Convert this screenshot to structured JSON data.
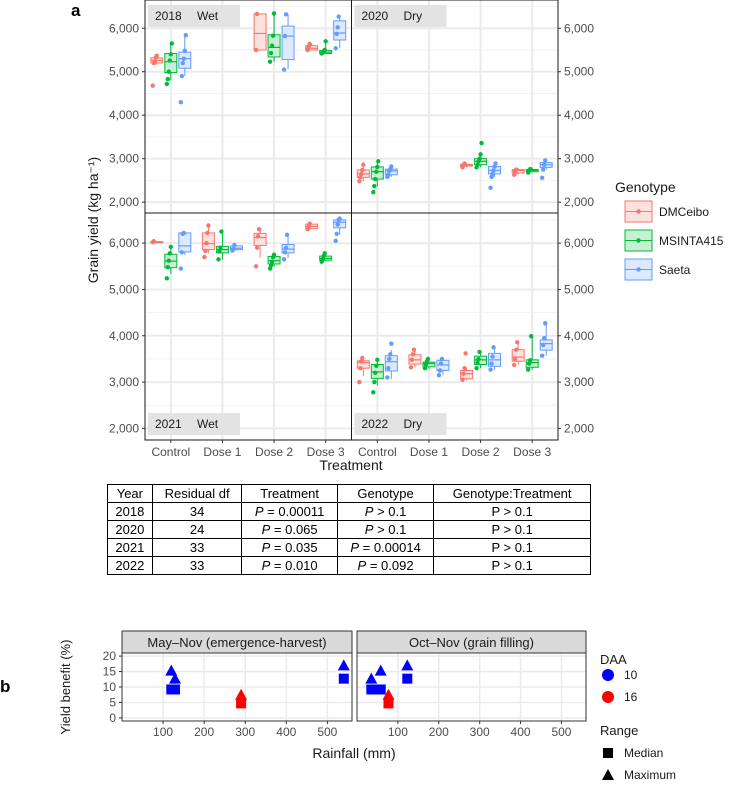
{
  "panel_a": {
    "label": "a",
    "ylabel": "Grain yield (kg ha⁻¹)",
    "xlabel": "Treatment",
    "legend_title": "Genotype",
    "facets": [
      {
        "year": "2018",
        "condition": "Wet"
      },
      {
        "year": "2020",
        "condition": "Dry"
      },
      {
        "year": "2021",
        "condition": "Wet"
      },
      {
        "year": "2022",
        "condition": "Dry"
      }
    ]
  },
  "table": {
    "headers": [
      "Year",
      "Residual df",
      "Treatment",
      "Genotype",
      "Genotype:Treatment"
    ],
    "rows": [
      {
        "year": "2018",
        "df": "34",
        "treatment": "0.00011",
        "genotype": "> 0.1",
        "gxt": "P > 0.1"
      },
      {
        "year": "2020",
        "df": "24",
        "treatment": "0.065",
        "genotype": "> 0.1",
        "gxt": "P > 0.1"
      },
      {
        "year": "2021",
        "df": "33",
        "treatment": "0.035",
        "genotype": "0.00014",
        "gxt": "P > 0.1"
      },
      {
        "year": "2022",
        "df": "33",
        "treatment": "0.010",
        "genotype": "0.092",
        "gxt": "P > 0.1"
      }
    ],
    "p_prefix": "P",
    "p_eq": " = "
  },
  "panel_b": {
    "label": "b",
    "ylabel": "Yield benefit (%)",
    "xlabel": "Rainfall (mm)",
    "legend_daa_title": "DAA",
    "legend_range_title": "Range"
  },
  "chart_data": [
    {
      "type": "box",
      "categories": [
        "Control",
        "Dose 1",
        "Dose 2",
        "Dose 3"
      ],
      "series": [
        {
          "name": "DMCeibo",
          "color": "#F8766D"
        },
        {
          "name": "MSINTA415",
          "color": "#00BA38"
        },
        {
          "name": "Saeta",
          "color": "#619CFF"
        }
      ],
      "yticks": [
        2000,
        3000,
        4000,
        5000,
        6000
      ],
      "ytick_labels": [
        "2,000",
        "3,000",
        "4,000",
        "5,000",
        "6,000"
      ],
      "ylim": [
        1750,
        6650
      ],
      "facets": [
        {
          "title": "2018 Wet",
          "boxes": [
            [
              [
                5160,
                5200,
                5260,
                5320,
                5370
              ],
              [
                4800,
                4980,
                5230,
                5420,
                5660
              ],
              [
                4900,
                5080,
                5300,
                5450,
                5820
              ]
            ],
            null,
            [
              [
                5500,
                5500,
                5880,
                6330,
                6330
              ],
              [
                5230,
                5340,
                5560,
                5850,
                6330
              ],
              [
                5060,
                5280,
                5820,
                6050,
                6330
              ]
            ],
            [
              [
                5500,
                5500,
                5540,
                5600,
                5640
              ],
              [
                5420,
                5420,
                5450,
                5490,
                5700
              ],
              [
                5540,
                5730,
                5890,
                6170,
                6270
              ]
            ]
          ],
          "points": [
            [
              [
                4680,
                5200,
                5240,
                5330,
                5370
              ],
              [
                4720,
                4830,
                5000,
                5260,
                5400,
                5650
              ],
              [
                4300,
                4900,
                5200,
                5300,
                5480,
                5840
              ]
            ],
            null,
            [
              [
                5500,
                6330
              ],
              [
                5230,
                5430,
                5600,
                5830,
                6340
              ],
              [
                5050,
                5820,
                6320
              ]
            ],
            [
              [
                5500,
                5580,
                5640
              ],
              [
                5420,
                5440,
                5470,
                5500,
                5700
              ],
              [
                5540,
                5870,
                6020,
                6270
              ]
            ]
          ]
        },
        {
          "title": "2020 Dry",
          "boxes": [
            [
              [
                2480,
                2570,
                2650,
                2740,
                2860
              ],
              [
                2370,
                2530,
                2700,
                2810,
                2940
              ],
              [
                2580,
                2630,
                2720,
                2760,
                2820
              ]
            ],
            null,
            [
              [
                2800,
                2830,
                2850,
                2870,
                2890
              ],
              [
                2800,
                2860,
                2940,
                3000,
                3100
              ],
              [
                2580,
                2650,
                2730,
                2820,
                2890
              ]
            ],
            [
              [
                2630,
                2670,
                2730,
                2750,
                2790
              ],
              [
                2680,
                2700,
                2730,
                2750,
                2800
              ],
              [
                2750,
                2800,
                2860,
                2910,
                2960
              ]
            ]
          ],
          "points": [
            [
              [
                2480,
                2570,
                2650,
                2740,
                2860
              ],
              [
                2230,
                2370,
                2530,
                2700,
                2810,
                2940
              ],
              [
                2580,
                2630,
                2720,
                2760,
                2820
              ]
            ],
            null,
            [
              [
                2800,
                2850,
                2890
              ],
              [
                2800,
                2860,
                2940,
                3000,
                3100,
                3360
              ],
              [
                2330,
                2580,
                2650,
                2730,
                2820,
                2890
              ]
            ],
            [
              [
                2630,
                2700,
                2750
              ],
              [
                2680,
                2730,
                2760
              ],
              [
                2560,
                2750,
                2860,
                2960
              ]
            ]
          ]
        },
        {
          "title": "2021 Wet",
          "boxes": [
            [
              [
                6030,
                6030,
                6030,
                6030,
                6030
              ],
              [
                5330,
                5470,
                5610,
                5760,
                5920
              ],
              [
                5740,
                5810,
                5940,
                6220,
                6220
              ]
            ],
            [
              [
                5780,
                5860,
                5990,
                6220,
                6370
              ],
              [
                5640,
                5790,
                5860,
                5930,
                6220
              ],
              [
                5840,
                5860,
                5890,
                5940,
                5960
              ]
            ],
            [
              [
                5690,
                5950,
                6120,
                6210,
                6300
              ],
              [
                5500,
                5550,
                5620,
                5710,
                5750
              ],
              [
                5680,
                5790,
                5870,
                5970,
                6140
              ]
            ],
            [
              [
                6310,
                6310,
                6360,
                6410,
                6420
              ],
              [
                5620,
                5630,
                5670,
                5720,
                5760
              ],
              [
                6180,
                6330,
                6450,
                6500,
                6530
              ]
            ]
          ],
          "points": [
            [
              [
                6020,
                6040
              ],
              [
                5240,
                5480,
                5620,
                5780,
                5920
              ],
              [
                5450,
                5800,
                6200,
                6220
              ]
            ],
            [
              [
                5700,
                5830,
                6000,
                6220,
                6380
              ],
              [
                5650,
                5820,
                5900,
                6250
              ],
              [
                5840,
                5880,
                5960
              ]
            ],
            [
              [
                5500,
                5900,
                6150,
                6300
              ],
              [
                5450,
                5520,
                5600,
                5700,
                5750
              ],
              [
                5650,
                5800,
                5900,
                6180
              ]
            ],
            [
              [
                6300,
                6360,
                6420
              ],
              [
                5600,
                5650,
                5720,
                5780
              ],
              [
                6050,
                6200,
                6400,
                6500,
                6530
              ]
            ]
          ]
        },
        {
          "title": "2022 Dry",
          "boxes": [
            [
              [
                3130,
                3300,
                3420,
                3460,
                3520
              ],
              [
                2930,
                3080,
                3220,
                3380,
                3480
              ],
              [
                3070,
                3240,
                3440,
                3570,
                3690
              ]
            ],
            [
              [
                3320,
                3390,
                3480,
                3590,
                3700
              ],
              [
                3280,
                3330,
                3400,
                3430,
                3500
              ],
              [
                3150,
                3250,
                3370,
                3470,
                3540
              ]
            ],
            [
              [
                3040,
                3070,
                3180,
                3250,
                3310
              ],
              [
                3300,
                3380,
                3480,
                3560,
                3650
              ],
              [
                3270,
                3340,
                3480,
                3620,
                3730
              ]
            ],
            [
              [
                3370,
                3450,
                3540,
                3700,
                3860
              ],
              [
                3270,
                3320,
                3420,
                3480,
                3990
              ],
              [
                3570,
                3690,
                3830,
                3910,
                4270
              ]
            ]
          ],
          "points": [
            [
              [
                3000,
                3300,
                3450,
                3520
              ],
              [
                2780,
                3000,
                3200,
                3350,
                3480
              ],
              [
                3100,
                3300,
                3500,
                3600,
                3830
              ]
            ],
            [
              [
                3320,
                3480,
                3600,
                3700
              ],
              [
                3300,
                3380,
                3450,
                3500
              ],
              [
                3150,
                3250,
                3400,
                3500
              ]
            ],
            [
              [
                3050,
                3180,
                3300,
                3620
              ],
              [
                3300,
                3420,
                3500,
                3650
              ],
              [
                3270,
                3400,
                3550,
                3750
              ]
            ],
            [
              [
                3370,
                3500,
                3700,
                3860
              ],
              [
                3270,
                3400,
                3470,
                3990
              ],
              [
                3570,
                3800,
                3950,
                4270
              ]
            ]
          ]
        }
      ]
    },
    {
      "type": "scatter",
      "facets": [
        "May–Nov (emergence-harvest)",
        "Oct–Nov (grain filling)"
      ],
      "x": {
        "label": "Rainfall (mm)",
        "lim": [
          0,
          560
        ],
        "ticks": [
          100,
          200,
          300,
          400,
          500
        ]
      },
      "y": {
        "label": "Yield benefit (%)",
        "lim": [
          -1,
          21
        ],
        "ticks": [
          0,
          5,
          10,
          15,
          20
        ]
      },
      "colors": {
        "10": "#0000FF",
        "16": "#FF0000"
      },
      "shapes": {
        "Median": "square",
        "Maximum": "triangle"
      },
      "daa_levels": [
        "10",
        "16"
      ],
      "range_levels": [
        "Median",
        "Maximum"
      ],
      "points": [
        {
          "facet": 0,
          "x": 120,
          "y": 9.2,
          "daa": "10",
          "range": "Median"
        },
        {
          "facet": 0,
          "x": 129,
          "y": 9.2,
          "daa": "10",
          "range": "Median"
        },
        {
          "facet": 0,
          "x": 120,
          "y": 15.3,
          "daa": "10",
          "range": "Maximum"
        },
        {
          "facet": 0,
          "x": 129,
          "y": 12.7,
          "daa": "10",
          "range": "Maximum"
        },
        {
          "facet": 0,
          "x": 540,
          "y": 12.7,
          "daa": "10",
          "range": "Median"
        },
        {
          "facet": 0,
          "x": 540,
          "y": 17.0,
          "daa": "10",
          "range": "Maximum"
        },
        {
          "facet": 0,
          "x": 290,
          "y": 4.7,
          "daa": "16",
          "range": "Median"
        },
        {
          "facet": 0,
          "x": 290,
          "y": 7.5,
          "daa": "16",
          "range": "Maximum"
        },
        {
          "facet": 1,
          "x": 35,
          "y": 9.2,
          "daa": "10",
          "range": "Median"
        },
        {
          "facet": 1,
          "x": 35,
          "y": 12.7,
          "daa": "10",
          "range": "Maximum"
        },
        {
          "facet": 1,
          "x": 58,
          "y": 9.2,
          "daa": "10",
          "range": "Median"
        },
        {
          "facet": 1,
          "x": 58,
          "y": 15.3,
          "daa": "10",
          "range": "Maximum"
        },
        {
          "facet": 1,
          "x": 123,
          "y": 12.7,
          "daa": "10",
          "range": "Median"
        },
        {
          "facet": 1,
          "x": 123,
          "y": 17.0,
          "daa": "10",
          "range": "Maximum"
        },
        {
          "facet": 1,
          "x": 77,
          "y": 4.7,
          "daa": "16",
          "range": "Median"
        },
        {
          "facet": 1,
          "x": 77,
          "y": 7.5,
          "daa": "16",
          "range": "Maximum"
        }
      ]
    }
  ]
}
